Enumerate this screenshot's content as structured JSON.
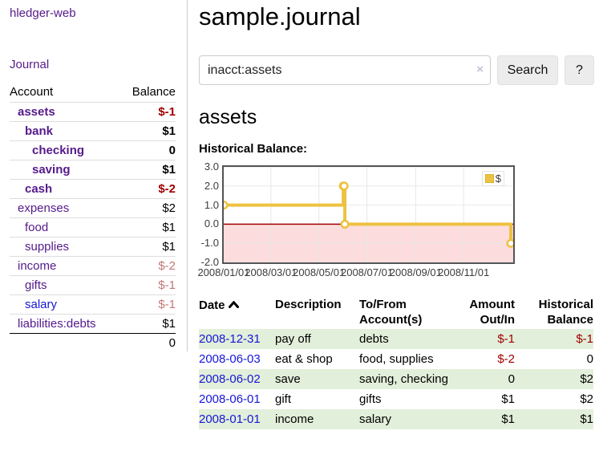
{
  "brand": "hledger-web",
  "nav": {
    "journal_label": "Journal"
  },
  "sidebar": {
    "header": {
      "account": "Account",
      "balance": "Balance"
    },
    "rows": [
      {
        "name": "assets",
        "indent": 1,
        "bold": true,
        "name_style": "purple",
        "balance": "$-1",
        "balance_style": "neg-strong"
      },
      {
        "name": "bank",
        "indent": 2,
        "bold": true,
        "name_style": "purple",
        "balance": "$1",
        "balance_style": "plain"
      },
      {
        "name": "checking",
        "indent": 3,
        "bold": true,
        "name_style": "purple",
        "balance": "0",
        "balance_style": "plain"
      },
      {
        "name": "saving",
        "indent": 3,
        "bold": true,
        "name_style": "purple",
        "balance": "$1",
        "balance_style": "plain"
      },
      {
        "name": "cash",
        "indent": 2,
        "bold": true,
        "name_style": "purple",
        "balance": "$-2",
        "balance_style": "neg-strong"
      },
      {
        "name": "expenses",
        "indent": 1,
        "bold": false,
        "name_style": "purple",
        "balance": "$2",
        "balance_style": "plain"
      },
      {
        "name": "food",
        "indent": 2,
        "bold": false,
        "name_style": "purple",
        "balance": "$1",
        "balance_style": "plain"
      },
      {
        "name": "supplies",
        "indent": 2,
        "bold": false,
        "name_style": "purple",
        "balance": "$1",
        "balance_style": "plain"
      },
      {
        "name": "income",
        "indent": 1,
        "bold": false,
        "name_style": "purple",
        "balance": "$-2",
        "balance_style": "neg-muted"
      },
      {
        "name": "gifts",
        "indent": 2,
        "bold": false,
        "name_style": "purple",
        "balance": "$-1",
        "balance_style": "neg-muted"
      },
      {
        "name": "salary",
        "indent": 2,
        "bold": false,
        "name_style": "blue",
        "balance": "$-1",
        "balance_style": "neg-muted"
      },
      {
        "name": "liabilities:debts",
        "indent": 1,
        "bold": false,
        "name_style": "purple",
        "balance": "$1",
        "balance_style": "plain"
      }
    ],
    "total": "0"
  },
  "header": {
    "title": "sample.journal"
  },
  "search": {
    "value": "inacct:assets",
    "clear_icon": "×",
    "button_label": "Search",
    "help_label": "?"
  },
  "account_page": {
    "title": "assets",
    "chart_label": "Historical Balance:"
  },
  "chart_data": {
    "type": "line",
    "title": "Historical Balance",
    "series": [
      {
        "name": "$",
        "color": "#edc240",
        "step": true,
        "points": [
          [
            "2008-01-01",
            1
          ],
          [
            "2008-06-01",
            2
          ],
          [
            "2008-06-02",
            2
          ],
          [
            "2008-06-03",
            0
          ],
          [
            "2008-12-31",
            -1
          ]
        ]
      }
    ],
    "x_range": [
      "2008-01-01",
      "2009-01-03"
    ],
    "x_ticks": [
      "2008/01/01",
      "2008/03/01",
      "2008/05/01",
      "2008/07/01",
      "2008/09/01",
      "2008/11/01"
    ],
    "y_ticks": [
      3.0,
      2.0,
      1.0,
      0.0,
      -1.0,
      -2.0
    ],
    "ylim": [
      -2,
      3
    ],
    "grid": true,
    "legend_position": "top-right",
    "negative_region": true
  },
  "register": {
    "columns": [
      {
        "label": "Date",
        "sort": "asc"
      },
      {
        "label": "Description"
      },
      {
        "label": "To/From Account(s)"
      },
      {
        "label": "Amount Out/In",
        "align": "right"
      },
      {
        "label": "Historical Balance",
        "align": "right"
      }
    ],
    "rows": [
      {
        "date": "2008-12-31",
        "description": "pay off",
        "accounts": [
          "debts"
        ],
        "amount": "$-1",
        "amount_neg": true,
        "balance": "$-1",
        "balance_neg": true
      },
      {
        "date": "2008-06-03",
        "description": "eat & shop",
        "accounts": [
          "food",
          "supplies"
        ],
        "amount": "$-2",
        "amount_neg": true,
        "balance": "0",
        "balance_neg": false
      },
      {
        "date": "2008-06-02",
        "description": "save",
        "accounts": [
          "saving",
          "checking"
        ],
        "amount": "0",
        "amount_neg": false,
        "balance": "$2",
        "balance_neg": false
      },
      {
        "date": "2008-06-01",
        "description": "gift",
        "accounts": [
          "gifts"
        ],
        "amount": "$1",
        "amount_neg": false,
        "balance": "$2",
        "balance_neg": false
      },
      {
        "date": "2008-01-01",
        "description": "income",
        "accounts": [
          "salary"
        ],
        "amount": "$1",
        "amount_neg": false,
        "balance": "$1",
        "balance_neg": false
      }
    ]
  },
  "colors": {
    "link_purple": "#551a8b",
    "link_blue": "#1616d6",
    "negative_strong": "#a00000",
    "negative_muted": "#c47777",
    "row_stripe_green": "#e2efda",
    "chart_series": "#edc240",
    "chart_negative_region": "#fcdcdc",
    "chart_zero_line": "#a00000",
    "chart_grid": "#e8e8e8",
    "chart_border": "#545454"
  }
}
